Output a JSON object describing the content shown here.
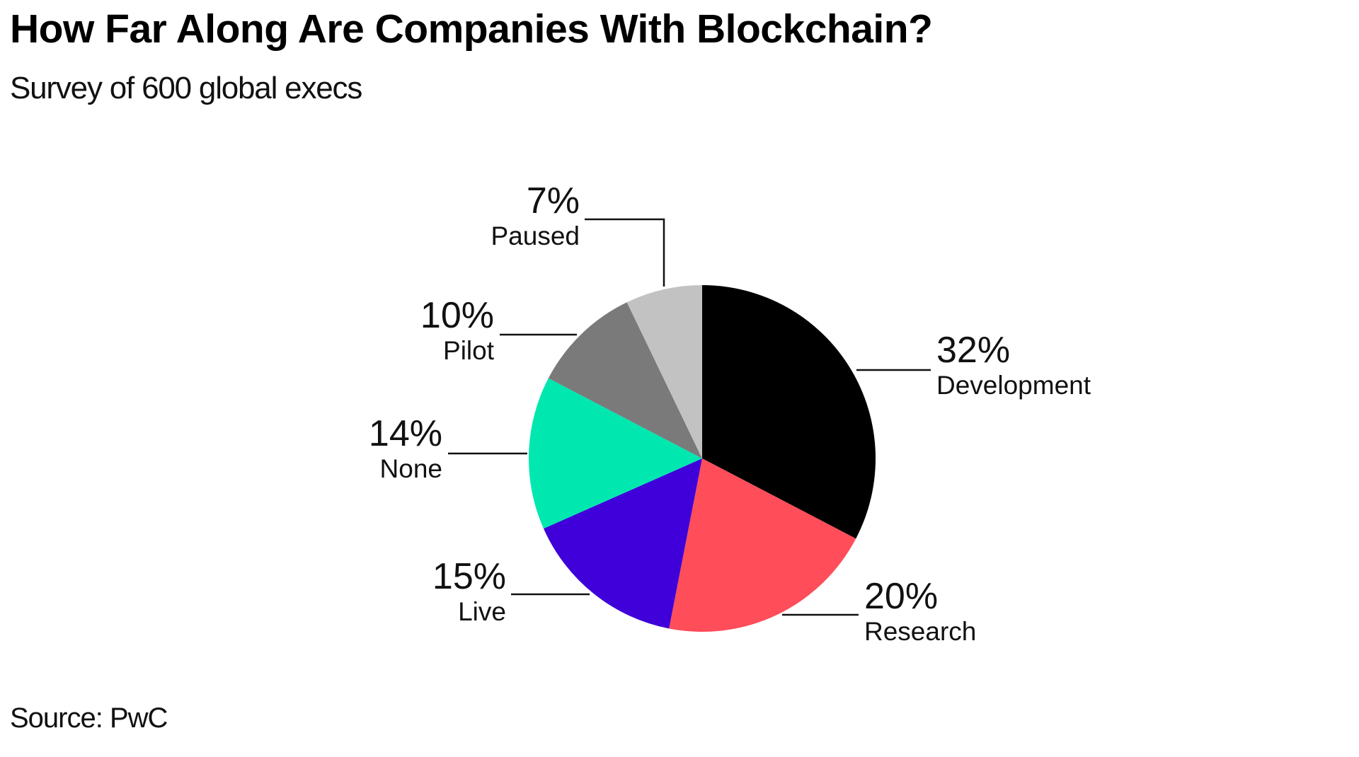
{
  "title": "How Far Along Are Companies With Blockchain?",
  "subtitle": "Survey of 600 global execs",
  "source": "Source: PwC",
  "chart_data": {
    "type": "pie",
    "unit": "%",
    "slices": [
      {
        "label": "Development",
        "value": 32,
        "display": "32%",
        "color": "#000000"
      },
      {
        "label": "Research",
        "value": 20,
        "display": "20%",
        "color": "#ff4d5a"
      },
      {
        "label": "Live",
        "value": 15,
        "display": "15%",
        "color": "#3f00d9"
      },
      {
        "label": "None",
        "value": 14,
        "display": "14%",
        "color": "#00e8b0"
      },
      {
        "label": "Pilot",
        "value": 10,
        "display": "10%",
        "color": "#7a7a7a"
      },
      {
        "label": "Paused",
        "value": 7,
        "display": "7%",
        "color": "#c2c2c2"
      }
    ],
    "start": "12 o'clock",
    "direction": "clockwise",
    "legend": "none"
  }
}
